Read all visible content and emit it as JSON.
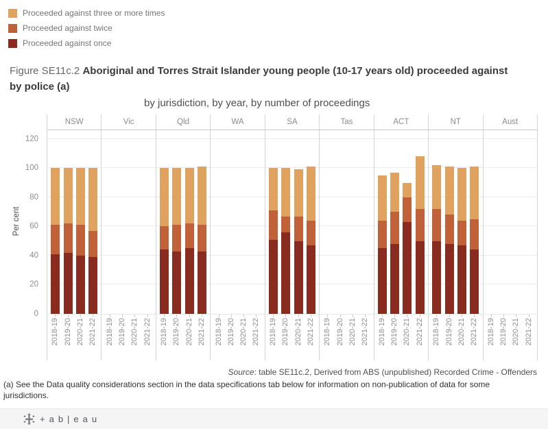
{
  "legend": {
    "items": [
      {
        "label": "Proceeded against three or more times",
        "color": "#dfa35f"
      },
      {
        "label": "Proceeded against twice",
        "color": "#c0613a"
      },
      {
        "label": "Proceeded against once",
        "color": "#8a2b20"
      }
    ]
  },
  "title": {
    "prefix": "Figure SE11c.2",
    "main": "Aboriginal and Torres Strait Islander young people (10-17 years old) proceeded against by police (a)",
    "subtitle": "by jurisdiction, by year, by number of proceedings"
  },
  "chart_data": {
    "type": "bar",
    "stacked": true,
    "title": "Figure SE11c.2 Aboriginal and Torres Strait Islander young people (10-17 years old) proceeded against by police (a)",
    "subtitle": "by jurisdiction, by year, by number of proceedings",
    "ylabel": "Per cent",
    "ylim": [
      0,
      126
    ],
    "yticks": [
      0,
      20,
      40,
      60,
      80,
      100,
      120
    ],
    "grid": "horizontal",
    "legend_position": "top-left",
    "jurisdictions": [
      "NSW",
      "Vic",
      "Qld",
      "WA",
      "SA",
      "Tas",
      "ACT",
      "NT",
      "Aust"
    ],
    "years": [
      "2018-19",
      "2019-20",
      "2020-21",
      "2021-22"
    ],
    "series_order": [
      "once",
      "twice",
      "three_plus"
    ],
    "series_labels": {
      "once": "Proceeded against once",
      "twice": "Proceeded against twice",
      "three_plus": "Proceeded against three or more times"
    },
    "colors": {
      "once": "#8a2b20",
      "twice": "#c0613a",
      "three_plus": "#dfa35f"
    },
    "values": {
      "NSW": {
        "once": [
          41,
          42,
          40,
          39
        ],
        "twice": [
          20,
          20,
          21,
          18
        ],
        "three_plus": [
          39,
          38,
          39,
          43
        ]
      },
      "Vic": null,
      "Qld": {
        "once": [
          44,
          43,
          45,
          43
        ],
        "twice": [
          16,
          18,
          17,
          18
        ],
        "three_plus": [
          40,
          39,
          38,
          40
        ]
      },
      "WA": null,
      "SA": {
        "once": [
          51,
          56,
          50,
          47
        ],
        "twice": [
          20,
          11,
          17,
          17
        ],
        "three_plus": [
          29,
          33,
          32,
          37
        ]
      },
      "Tas": null,
      "ACT": {
        "once": [
          45,
          48,
          63,
          50
        ],
        "twice": [
          19,
          22,
          17,
          22
        ],
        "three_plus": [
          31,
          27,
          10,
          36
        ]
      },
      "NT": {
        "once": [
          50,
          48,
          47,
          44
        ],
        "twice": [
          22,
          20,
          17,
          21
        ],
        "three_plus": [
          30,
          33,
          36,
          36
        ]
      },
      "Aust": null
    }
  },
  "source": {
    "label": "Source",
    "text": ": table SE11c.2, Derived from ABS (unpublished) Recorded Crime - Offenders"
  },
  "footnote": "(a) See the Data quality considerations section in the data specifications tab below for information on non-publication of data for some jurisdictions.",
  "footer": {
    "wordmark": "+ab|eau"
  }
}
